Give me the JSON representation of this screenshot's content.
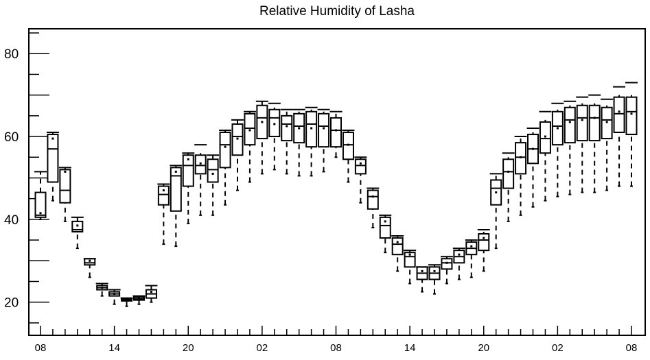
{
  "chart_data": {
    "type": "box",
    "title": "Relative Humidity of Lasha",
    "xlabel": "",
    "ylabel": "",
    "ylim": [
      12,
      86
    ],
    "yticks": [
      20,
      40,
      60,
      80
    ],
    "grid": false,
    "legend": "none",
    "start_hour": 8,
    "hours_per_label": 6,
    "xtick_labels": [
      "08",
      "14",
      "20",
      "02",
      "08",
      "14",
      "20",
      "02",
      "08"
    ],
    "boxes": [
      {
        "hour": 8,
        "whisker_low": 40.0,
        "q1": 40.5,
        "median": 41.0,
        "mean": 41.5,
        "q3": 46.5,
        "whisker_high": 51.5,
        "extreme_high": 51.5
      },
      {
        "hour": 9,
        "whisker_low": 44.5,
        "q1": 49.0,
        "median": 57.0,
        "mean": 59.5,
        "q3": 60.5,
        "whisker_high": 61.0,
        "extreme_high": 61.0
      },
      {
        "hour": 10,
        "whisker_low": 39.5,
        "q1": 44.0,
        "median": 47.0,
        "mean": 51.5,
        "q3": 52.0,
        "whisker_high": 52.5,
        "extreme_high": 52.5
      },
      {
        "hour": 11,
        "whisker_low": 33.0,
        "q1": 37.0,
        "median": 37.5,
        "mean": 38.5,
        "q3": 39.5,
        "whisker_high": 40.5,
        "extreme_high": 40.5
      },
      {
        "hour": 12,
        "whisker_low": 26.0,
        "q1": 29.0,
        "median": 29.5,
        "mean": 30.0,
        "q3": 30.5,
        "whisker_high": 30.5,
        "extreme_high": 30.5
      },
      {
        "hour": 13,
        "whisker_low": 21.5,
        "q1": 23.0,
        "median": 23.5,
        "mean": 23.5,
        "q3": 24.0,
        "whisker_high": 24.5,
        "extreme_high": 24.5
      },
      {
        "hour": 14,
        "whisker_low": 19.5,
        "q1": 21.5,
        "median": 22.0,
        "mean": 22.0,
        "q3": 22.5,
        "whisker_high": 23.0,
        "extreme_high": 23.0
      },
      {
        "hour": 15,
        "whisker_low": 19.0,
        "q1": 20.3,
        "median": 20.5,
        "mean": 20.5,
        "q3": 20.7,
        "whisker_high": 21.0,
        "extreme_high": 21.0
      },
      {
        "hour": 16,
        "whisker_low": 19.5,
        "q1": 20.5,
        "median": 20.8,
        "mean": 20.8,
        "q3": 21.2,
        "whisker_high": 21.5,
        "extreme_high": 21.5
      },
      {
        "hour": 17,
        "whisker_low": 20.0,
        "q1": 21.0,
        "median": 22.0,
        "mean": 22.5,
        "q3": 23.0,
        "whisker_high": 24.0,
        "extreme_high": 24.0
      },
      {
        "hour": 18,
        "whisker_low": 34.0,
        "q1": 43.5,
        "median": 46.0,
        "mean": 47.0,
        "q3": 48.0,
        "whisker_high": 48.5,
        "extreme_high": 48.5
      },
      {
        "hour": 19,
        "whisker_low": 33.5,
        "q1": 42.0,
        "median": 50.5,
        "mean": 51.5,
        "q3": 52.5,
        "whisker_high": 53.0,
        "extreme_high": 53.0
      },
      {
        "hour": 20,
        "whisker_low": 39.0,
        "q1": 48.0,
        "median": 53.0,
        "mean": 54.5,
        "q3": 55.5,
        "whisker_high": 56.0,
        "extreme_high": 56.0
      },
      {
        "hour": 21,
        "whisker_low": 41.0,
        "q1": 51.0,
        "median": 53.0,
        "mean": 53.5,
        "q3": 55.5,
        "whisker_high": 56.0,
        "extreme_high": 58.0
      },
      {
        "hour": 22,
        "whisker_low": 41.0,
        "q1": 49.0,
        "median": 52.0,
        "mean": 51.0,
        "q3": 54.5,
        "whisker_high": 55.5,
        "extreme_high": 55.5
      },
      {
        "hour": 23,
        "whisker_low": 43.5,
        "q1": 52.5,
        "median": 58.0,
        "mean": 57.5,
        "q3": 61.0,
        "whisker_high": 61.5,
        "extreme_high": 61.5
      },
      {
        "hour": 0,
        "whisker_low": 47.0,
        "q1": 55.5,
        "median": 60.0,
        "mean": 59.5,
        "q3": 63.0,
        "whisker_high": 64.0,
        "extreme_high": 64.0
      },
      {
        "hour": 1,
        "whisker_low": 49.0,
        "q1": 58.0,
        "median": 62.0,
        "mean": 61.5,
        "q3": 65.5,
        "whisker_high": 66.0,
        "extreme_high": 66.0
      },
      {
        "hour": 2,
        "whisker_low": 51.0,
        "q1": 59.5,
        "median": 64.5,
        "mean": 63.5,
        "q3": 67.5,
        "whisker_high": 68.5,
        "extreme_high": 68.5
      },
      {
        "hour": 3,
        "whisker_low": 52.0,
        "q1": 60.0,
        "median": 64.5,
        "mean": 63.0,
        "q3": 66.5,
        "whisker_high": 67.0,
        "extreme_high": 68.0
      },
      {
        "hour": 4,
        "whisker_low": 51.0,
        "q1": 59.0,
        "median": 63.0,
        "mean": 62.5,
        "q3": 65.0,
        "whisker_high": 66.0,
        "extreme_high": 66.5
      },
      {
        "hour": 5,
        "whisker_low": 50.5,
        "q1": 58.5,
        "median": 62.5,
        "mean": 62.0,
        "q3": 65.5,
        "whisker_high": 66.0,
        "extreme_high": 66.5
      },
      {
        "hour": 6,
        "whisker_low": 50.5,
        "q1": 57.5,
        "median": 63.0,
        "mean": 62.0,
        "q3": 66.0,
        "whisker_high": 66.5,
        "extreme_high": 67.0
      },
      {
        "hour": 7,
        "whisker_low": 51.5,
        "q1": 57.5,
        "median": 62.5,
        "mean": 62.0,
        "q3": 65.5,
        "whisker_high": 66.0,
        "extreme_high": 66.5
      },
      {
        "hour": 8,
        "whisker_low": 55.0,
        "q1": 57.5,
        "median": 61.5,
        "mean": 61.5,
        "q3": 64.5,
        "whisker_high": 65.5,
        "extreme_high": 66.0
      },
      {
        "hour": 9,
        "whisker_low": 49.0,
        "q1": 54.5,
        "median": 58.0,
        "mean": 58.0,
        "q3": 61.0,
        "whisker_high": 61.5,
        "extreme_high": 61.5
      },
      {
        "hour": 10,
        "whisker_low": 44.0,
        "q1": 51.0,
        "median": 53.0,
        "mean": 53.5,
        "q3": 54.5,
        "whisker_high": 55.0,
        "extreme_high": 55.0
      },
      {
        "hour": 11,
        "whisker_low": 38.0,
        "q1": 42.5,
        "median": 45.5,
        "mean": 45.5,
        "q3": 47.0,
        "whisker_high": 47.5,
        "extreme_high": 47.5
      },
      {
        "hour": 12,
        "whisker_low": 32.0,
        "q1": 35.5,
        "median": 38.5,
        "mean": 39.5,
        "q3": 40.5,
        "whisker_high": 41.0,
        "extreme_high": 41.0
      },
      {
        "hour": 13,
        "whisker_low": 27.5,
        "q1": 31.5,
        "median": 34.0,
        "mean": 34.5,
        "q3": 35.5,
        "whisker_high": 36.0,
        "extreme_high": 36.0
      },
      {
        "hour": 14,
        "whisker_low": 24.5,
        "q1": 28.5,
        "median": 31.0,
        "mean": 31.5,
        "q3": 32.0,
        "whisker_high": 32.5,
        "extreme_high": 32.5
      },
      {
        "hour": 15,
        "whisker_low": 22.5,
        "q1": 25.5,
        "median": 27.0,
        "mean": 27.5,
        "q3": 28.5,
        "whisker_high": 28.5,
        "extreme_high": 28.5
      },
      {
        "hour": 16,
        "whisker_low": 22.0,
        "q1": 25.5,
        "median": 27.0,
        "mean": 27.5,
        "q3": 28.5,
        "whisker_high": 29.0,
        "extreme_high": 29.0
      },
      {
        "hour": 17,
        "whisker_low": 24.5,
        "q1": 28.0,
        "median": 29.5,
        "mean": 29.5,
        "q3": 30.5,
        "whisker_high": 31.0,
        "extreme_high": 31.0
      },
      {
        "hour": 18,
        "whisker_low": 25.5,
        "q1": 29.5,
        "median": 31.0,
        "mean": 31.5,
        "q3": 32.5,
        "whisker_high": 33.0,
        "extreme_high": 33.0
      },
      {
        "hour": 19,
        "whisker_low": 26.0,
        "q1": 31.5,
        "median": 33.0,
        "mean": 33.5,
        "q3": 34.5,
        "whisker_high": 35.0,
        "extreme_high": 35.0
      },
      {
        "hour": 20,
        "whisker_low": 27.5,
        "q1": 32.5,
        "median": 35.0,
        "mean": 35.5,
        "q3": 36.5,
        "whisker_high": 37.0,
        "extreme_high": 37.5
      },
      {
        "hour": 21,
        "whisker_low": 33.0,
        "q1": 43.5,
        "median": 47.5,
        "mean": 46.5,
        "q3": 49.5,
        "whisker_high": 50.5,
        "extreme_high": 51.0
      },
      {
        "hour": 22,
        "whisker_low": 39.5,
        "q1": 47.5,
        "median": 51.5,
        "mean": 51.5,
        "q3": 54.5,
        "whisker_high": 55.0,
        "extreme_high": 56.0
      },
      {
        "hour": 23,
        "whisker_low": 41.0,
        "q1": 51.0,
        "median": 55.0,
        "mean": 55.0,
        "q3": 58.5,
        "whisker_high": 59.5,
        "extreme_high": 60.0
      },
      {
        "hour": 0,
        "whisker_low": 43.0,
        "q1": 53.5,
        "median": 57.0,
        "mean": 57.0,
        "q3": 60.5,
        "whisker_high": 61.0,
        "extreme_high": 62.0
      },
      {
        "hour": 1,
        "whisker_low": 44.5,
        "q1": 56.0,
        "median": 59.5,
        "mean": 60.0,
        "q3": 63.5,
        "whisker_high": 64.0,
        "extreme_high": 66.0
      },
      {
        "hour": 2,
        "whisker_low": 45.5,
        "q1": 58.0,
        "median": 62.5,
        "mean": 62.0,
        "q3": 66.0,
        "whisker_high": 66.5,
        "extreme_high": 68.0
      },
      {
        "hour": 3,
        "whisker_low": 46.0,
        "q1": 58.5,
        "median": 64.0,
        "mean": 63.5,
        "q3": 67.0,
        "whisker_high": 67.5,
        "extreme_high": 68.5
      },
      {
        "hour": 4,
        "whisker_low": 46.5,
        "q1": 59.0,
        "median": 64.5,
        "mean": 64.0,
        "q3": 67.5,
        "whisker_high": 68.0,
        "extreme_high": 69.5
      },
      {
        "hour": 5,
        "whisker_low": 46.5,
        "q1": 59.0,
        "median": 64.5,
        "mean": 64.5,
        "q3": 67.5,
        "whisker_high": 68.0,
        "extreme_high": 70.0
      },
      {
        "hour": 6,
        "whisker_low": 47.0,
        "q1": 59.5,
        "median": 64.0,
        "mean": 63.5,
        "q3": 67.0,
        "whisker_high": 67.5,
        "extreme_high": 69.0
      },
      {
        "hour": 7,
        "whisker_low": 48.0,
        "q1": 61.0,
        "median": 65.5,
        "mean": 66.0,
        "q3": 69.5,
        "whisker_high": 70.0,
        "extreme_high": 72.0
      },
      {
        "hour": 8,
        "whisker_low": 48.0,
        "q1": 60.5,
        "median": 66.0,
        "mean": 65.5,
        "q3": 69.5,
        "whisker_high": 70.0,
        "extreme_high": 73.0
      }
    ]
  }
}
